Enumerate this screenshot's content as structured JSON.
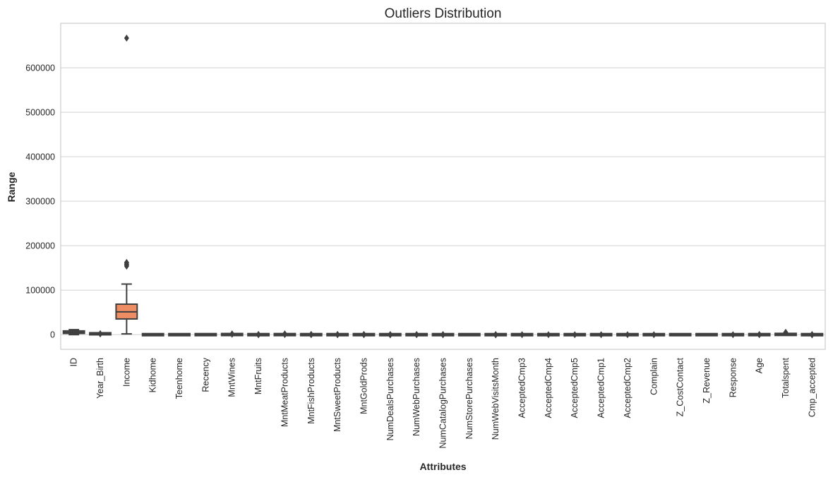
{
  "chart_data": {
    "type": "box",
    "title": "Outliers Distribution",
    "xlabel": "Attributes",
    "ylabel": "Range",
    "ylim": [
      -33000,
      700000
    ],
    "yticks": [
      0,
      100000,
      200000,
      300000,
      400000,
      500000,
      600000
    ],
    "ytick_labels": [
      "0",
      "100000",
      "200000",
      "300000",
      "400000",
      "500000",
      "600000"
    ],
    "grid": "horizontal",
    "colors": {
      "box_edge": "#3f3f3f",
      "grid": "#d5d5d5",
      "axes_edge": "#cccccc",
      "palette": [
        "#5974a3",
        "#ebaa6b",
        "#ee8c63",
        "#a06fa3",
        "#9b7b6c",
        "#6ca371",
        "#c45a5a",
        "#7a7a7a",
        "#bfb86f",
        "#6fb7c6"
      ]
    },
    "categories": [
      "ID",
      "Year_Birth",
      "Income",
      "Kidhome",
      "Teenhome",
      "Recency",
      "MntWines",
      "MntFruits",
      "MntMeatProducts",
      "MntFishProducts",
      "MntSweetProducts",
      "MntGoldProds",
      "NumDealsPurchases",
      "NumWebPurchases",
      "NumCatalogPurchases",
      "NumStorePurchases",
      "NumWebVisitsMonth",
      "AcceptedCmp3",
      "AcceptedCmp4",
      "AcceptedCmp5",
      "AcceptedCmp1",
      "AcceptedCmp2",
      "Complain",
      "Z_CostContact",
      "Z_Revenue",
      "Response",
      "Age",
      "Totalspent",
      "Cmp_accepted"
    ],
    "boxes": [
      {
        "min": 0,
        "q1": 2828,
        "median": 5458,
        "q3": 8428,
        "max": 11191,
        "outliers": []
      },
      {
        "min": 1940,
        "q1": 1959,
        "median": 1970,
        "q3": 1977,
        "max": 1996,
        "outliers": [
          1893,
          1899,
          1900
        ]
      },
      {
        "min": 1730,
        "q1": 35303,
        "median": 51382,
        "q3": 68522,
        "max": 113734,
        "outliers": [
          153924,
          156924,
          157146,
          157243,
          157733,
          160803,
          162397,
          666666
        ]
      },
      {
        "min": 0,
        "q1": 0,
        "median": 0,
        "q3": 1,
        "max": 2,
        "outliers": []
      },
      {
        "min": 0,
        "q1": 0,
        "median": 0,
        "q3": 1,
        "max": 2,
        "outliers": []
      },
      {
        "min": 0,
        "q1": 24,
        "median": 49,
        "q3": 74,
        "max": 99,
        "outliers": []
      },
      {
        "min": 0,
        "q1": 24,
        "median": 174,
        "q3": 504,
        "max": 1224,
        "outliers": [
          1230,
          1259,
          1285,
          1302,
          1349,
          1396,
          1493
        ]
      },
      {
        "min": 0,
        "q1": 1,
        "median": 8,
        "q3": 33,
        "max": 81,
        "outliers": [
          83,
          100,
          120,
          151,
          174,
          199
        ]
      },
      {
        "min": 0,
        "q1": 16,
        "median": 67,
        "q3": 232,
        "max": 556,
        "outliers": [
          560,
          650,
          800,
          925,
          981,
          1582,
          1725
        ]
      },
      {
        "min": 0,
        "q1": 3,
        "median": 12,
        "q3": 50,
        "max": 120,
        "outliers": [
          123,
          150,
          180,
          220,
          259
        ]
      },
      {
        "min": 0,
        "q1": 1,
        "median": 8,
        "q3": 33,
        "max": 81,
        "outliers": [
          83,
          120,
          160,
          198,
          262
        ]
      },
      {
        "min": 0,
        "q1": 9,
        "median": 24,
        "q3": 56,
        "max": 126,
        "outliers": [
          130,
          180,
          230,
          321
        ]
      },
      {
        "min": 0,
        "q1": 1,
        "median": 2,
        "q3": 3,
        "max": 6,
        "outliers": [
          7,
          9,
          11,
          13,
          15
        ]
      },
      {
        "min": 0,
        "q1": 2,
        "median": 4,
        "q3": 6,
        "max": 11,
        "outliers": [
          23,
          25,
          27
        ]
      },
      {
        "min": 0,
        "q1": 0,
        "median": 2,
        "q3": 4,
        "max": 10,
        "outliers": [
          11,
          22,
          28
        ]
      },
      {
        "min": 0,
        "q1": 3,
        "median": 5,
        "q3": 8,
        "max": 13,
        "outliers": []
      },
      {
        "min": 0,
        "q1": 3,
        "median": 6,
        "q3": 7,
        "max": 10,
        "outliers": [
          13,
          14,
          17,
          19,
          20
        ]
      },
      {
        "min": 0,
        "q1": 0,
        "median": 0,
        "q3": 0,
        "max": 0,
        "outliers": [
          1
        ]
      },
      {
        "min": 0,
        "q1": 0,
        "median": 0,
        "q3": 0,
        "max": 0,
        "outliers": [
          1
        ]
      },
      {
        "min": 0,
        "q1": 0,
        "median": 0,
        "q3": 0,
        "max": 0,
        "outliers": [
          1
        ]
      },
      {
        "min": 0,
        "q1": 0,
        "median": 0,
        "q3": 0,
        "max": 0,
        "outliers": [
          1
        ]
      },
      {
        "min": 0,
        "q1": 0,
        "median": 0,
        "q3": 0,
        "max": 0,
        "outliers": [
          1
        ]
      },
      {
        "min": 0,
        "q1": 0,
        "median": 0,
        "q3": 0,
        "max": 0,
        "outliers": [
          1
        ]
      },
      {
        "min": 3,
        "q1": 3,
        "median": 3,
        "q3": 3,
        "max": 3,
        "outliers": []
      },
      {
        "min": 11,
        "q1": 11,
        "median": 11,
        "q3": 11,
        "max": 11,
        "outliers": []
      },
      {
        "min": 0,
        "q1": 0,
        "median": 0,
        "q3": 0,
        "max": 0,
        "outliers": [
          1
        ]
      },
      {
        "min": 25,
        "q1": 43,
        "median": 50,
        "q3": 61,
        "max": 79,
        "outliers": [
          121,
          122,
          128
        ]
      },
      {
        "min": 5,
        "q1": 69,
        "median": 396,
        "q3": 1045,
        "max": 2525,
        "outliers": [
          4500,
          5200
        ]
      },
      {
        "min": 0,
        "q1": 0,
        "median": 0,
        "q3": 0,
        "max": 0,
        "outliers": [
          1,
          2,
          3,
          4,
          5
        ]
      }
    ]
  }
}
